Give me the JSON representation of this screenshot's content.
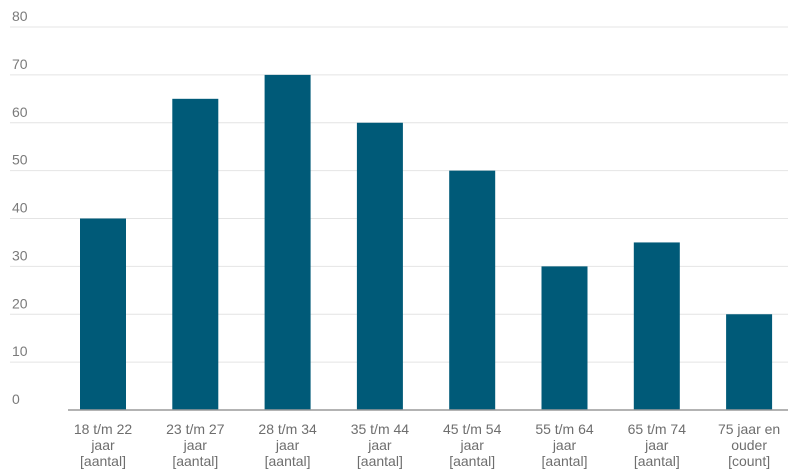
{
  "chart_data": {
    "type": "bar",
    "categories": [
      [
        "18 t/m 22",
        "jaar",
        "[aantal]"
      ],
      [
        "23 t/m 27",
        "jaar",
        "[aantal]"
      ],
      [
        "28 t/m 34",
        "jaar",
        "[aantal]"
      ],
      [
        "35 t/m 44",
        "jaar",
        "[aantal]"
      ],
      [
        "45 t/m 54",
        "jaar",
        "[aantal]"
      ],
      [
        "55 t/m 64",
        "jaar",
        "[aantal]"
      ],
      [
        "65 t/m 74",
        "jaar",
        "[aantal]"
      ],
      [
        "75 jaar en",
        "ouder",
        "[count]"
      ]
    ],
    "values": [
      40,
      65,
      70,
      60,
      50,
      30,
      35,
      20
    ],
    "ylim": [
      0,
      80
    ],
    "yticks": [
      0,
      10,
      20,
      30,
      40,
      50,
      60,
      70,
      80
    ],
    "grid": true,
    "colors": {
      "bar": "#005a78",
      "grid": "#e4e4e4",
      "axis": "#9a9a9a",
      "text": "#7a7a7a"
    }
  }
}
